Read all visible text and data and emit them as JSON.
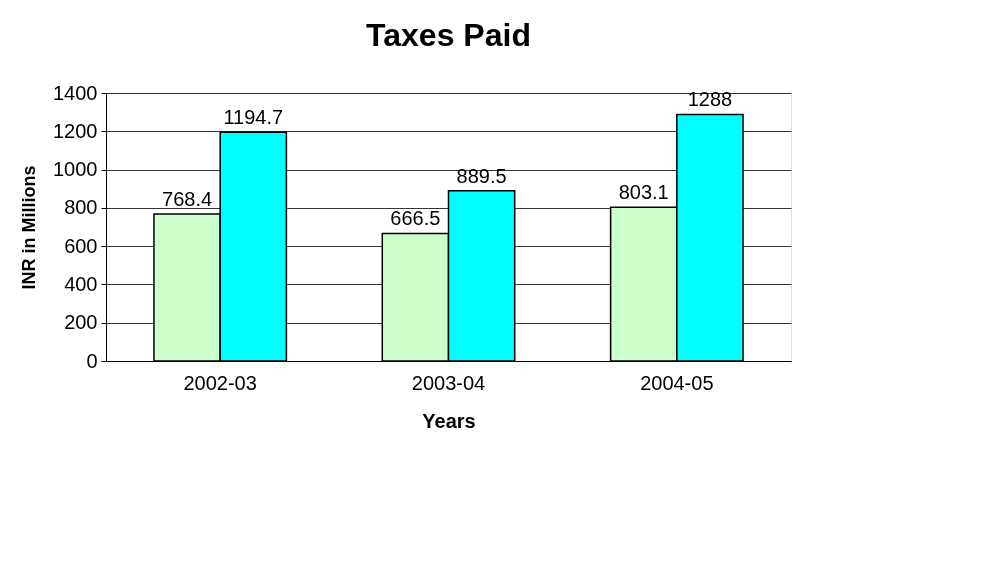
{
  "chart_data": {
    "type": "bar",
    "title": "Taxes Paid",
    "xlabel": "Years",
    "ylabel": "INR in Millions",
    "categories": [
      "2002-03",
      "2003-04",
      "2004-05"
    ],
    "series": [
      {
        "color": "#ccffcc",
        "values": [
          768.4,
          666.5,
          803.1
        ]
      },
      {
        "color": "#00ffff",
        "values": [
          1194.7,
          889.5,
          1288
        ]
      }
    ],
    "ylim": [
      0,
      1400
    ],
    "yticks": [
      0,
      200,
      400,
      600,
      800,
      1000,
      1200,
      1400
    ],
    "grid": "y",
    "data_labels": true
  }
}
